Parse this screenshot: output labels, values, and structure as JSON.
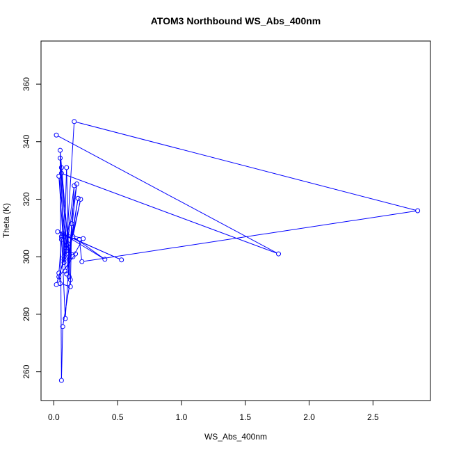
{
  "chart_data": {
    "type": "line",
    "title": "ATOM3 Northbound WS_Abs_400nm",
    "xlabel": "WS_Abs_400nm",
    "ylabel": "Theta (K)",
    "xlim": [
      -0.1,
      2.95
    ],
    "ylim": [
      250,
      375
    ],
    "x_ticks": [
      0.0,
      0.5,
      1.0,
      1.5,
      2.0,
      2.5
    ],
    "x_tick_labels": [
      "0.0",
      "0.5",
      "1.0",
      "1.5",
      "2.0",
      "2.5"
    ],
    "y_ticks": [
      260,
      280,
      300,
      320,
      340,
      360
    ],
    "y_tick_labels": [
      "260",
      "280",
      "300",
      "320",
      "340",
      "360"
    ],
    "grid": false,
    "legend": "none",
    "series_color": "#0000ff",
    "marker": "open-circle",
    "series": [
      {
        "points": [
          [
            0.02,
            342.3
          ],
          [
            1.76,
            301.0
          ],
          [
            0.06,
            329.0
          ],
          [
            0.1,
            304.0
          ],
          [
            0.16,
            347.0
          ],
          [
            2.85,
            316.0
          ],
          [
            0.22,
            298.3
          ],
          [
            0.2,
            306.0
          ],
          [
            0.08,
            307.0
          ],
          [
            0.13,
            292.0
          ],
          [
            0.07,
            275.7
          ],
          [
            0.06,
            257.0
          ],
          [
            0.05,
            334.3
          ],
          [
            0.09,
            295.0
          ],
          [
            0.04,
            328.0
          ],
          [
            0.1,
            303.0
          ],
          [
            0.06,
            331.0
          ],
          [
            0.12,
            300.0
          ],
          [
            0.05,
            337.0
          ],
          [
            0.08,
            300.0
          ],
          [
            0.1,
            331.0
          ],
          [
            0.12,
            293.0
          ],
          [
            0.16,
            324.7
          ],
          [
            0.08,
            298.0
          ],
          [
            0.18,
            325.3
          ],
          [
            0.1,
            294.0
          ],
          [
            0.19,
            320.3
          ],
          [
            0.12,
            302.0
          ],
          [
            0.21,
            320.0
          ],
          [
            0.15,
            307.0
          ],
          [
            0.4,
            299.1
          ],
          [
            0.07,
            308.0
          ],
          [
            0.53,
            298.9
          ],
          [
            0.03,
            308.7
          ],
          [
            0.23,
            306.3
          ],
          [
            0.15,
            300.0
          ],
          [
            0.06,
            307.0
          ],
          [
            0.09,
            278.5
          ],
          [
            0.14,
            311.5
          ],
          [
            0.13,
            289.6
          ],
          [
            0.05,
            290.7
          ],
          [
            0.04,
            294.3
          ],
          [
            0.06,
            306.0
          ],
          [
            0.08,
            299.0
          ],
          [
            0.02,
            290.3
          ],
          [
            0.1,
            302.0
          ],
          [
            0.17,
            301.0
          ],
          [
            0.04,
            293.0
          ],
          [
            0.11,
            304.5
          ]
        ]
      }
    ]
  }
}
